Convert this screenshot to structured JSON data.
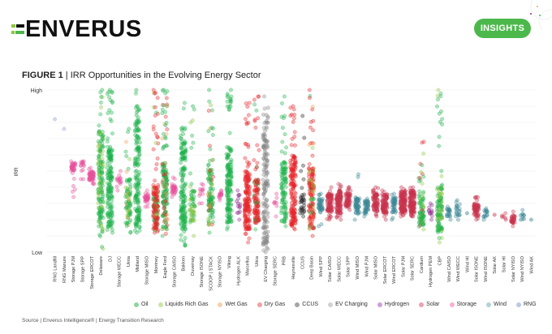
{
  "header": {
    "logo_text": "ENVERUS",
    "insights_label": "INSIGHTS"
  },
  "figure": {
    "label": "FIGURE 1",
    "separator": " | ",
    "title": "IRR Opportunities in the Evolving Energy Sector"
  },
  "source_text": "Source | Enverus Intelligence® | Energy Transition Research",
  "colors": {
    "brand_green": "#4cb84c",
    "Oil": "#1db34a",
    "Liquids Rich Gas": "#8cc63f",
    "Wet Gas": "#f5a05a",
    "Dry Gas": "#e8262a",
    "CCUS": "#222222",
    "EV Charging": "#888888",
    "Hydrogen": "#8e2a8e",
    "Solar": "#c8334d",
    "Storage": "#e8509a",
    "Wind": "#3b8796",
    "RNG": "#9aaed6"
  },
  "chart_data": {
    "type": "scatter",
    "subtype": "categorical strip plot",
    "title": "IRR Opportunities in the Evolving Energy Sector",
    "xlabel": "",
    "ylabel": "IRR",
    "y_tick_labels": [
      "High",
      "Low"
    ],
    "ylim": [
      0,
      1
    ],
    "grid": true,
    "legend_position": "bottom",
    "legend": [
      "Oil",
      "Liquids Rich Gas",
      "Wet Gas",
      "Dry Gas",
      "CCUS",
      "EV Charging",
      "Hydrogen",
      "Solar",
      "Storage",
      "Wind",
      "RNG"
    ],
    "categories": [
      {
        "name": "RNG Landfill",
        "group": "RNG",
        "min": 0.82,
        "max": 0.82,
        "q1": 0.82,
        "q3": 0.82,
        "n": 1
      },
      {
        "name": "RNG Manure",
        "group": "RNG",
        "min": 0.76,
        "max": 0.76,
        "q1": 0.76,
        "q3": 0.76,
        "n": 1
      },
      {
        "name": "Storage PJM",
        "group": "Storage",
        "min": 0.34,
        "max": 0.56,
        "q1": 0.5,
        "q3": 0.55,
        "n": 40
      },
      {
        "name": "Storage SPP",
        "group": "Storage",
        "min": 0.45,
        "max": 0.56,
        "q1": 0.53,
        "q3": 0.56,
        "n": 15
      },
      {
        "name": "Storage ERCOT",
        "group": "Storage",
        "min": 0.42,
        "max": 0.52,
        "q1": 0.44,
        "q3": 0.5,
        "n": 50
      },
      {
        "name": "Delaware",
        "group": "Oil",
        "mix": [
          "Liquids Rich Gas"
        ],
        "min": 0.02,
        "max": 1.0,
        "q1": 0.12,
        "q3": 0.75,
        "n": 400
      },
      {
        "name": "DJ",
        "group": "Oil",
        "min": 0.12,
        "max": 1.0,
        "q1": 0.15,
        "q3": 0.65,
        "n": 250
      },
      {
        "name": "Storage WECC",
        "group": "Storage",
        "min": 0.38,
        "max": 0.5,
        "q1": 0.4,
        "q3": 0.46,
        "n": 15
      },
      {
        "name": "Uinta",
        "group": "Oil",
        "mix": [
          "Wet Gas",
          "Liquids Rich Gas"
        ],
        "min": 0.12,
        "max": 0.76,
        "q1": 0.16,
        "q3": 0.45,
        "n": 80
      },
      {
        "name": "Midland",
        "group": "Oil",
        "min": 0.12,
        "max": 1.0,
        "q1": 0.14,
        "q3": 0.85,
        "n": 450
      },
      {
        "name": "Storage MISO",
        "group": "Storage",
        "min": 0.28,
        "max": 0.38,
        "q1": 0.31,
        "q3": 0.36,
        "n": 30
      },
      {
        "name": "Montney",
        "group": "Dry Gas",
        "mix": [
          "Liquids Rich Gas",
          "Oil"
        ],
        "min": 0.12,
        "max": 1.0,
        "q1": 0.14,
        "q3": 0.4,
        "n": 250
      },
      {
        "name": "Eagle Ford",
        "group": "Oil",
        "mix": [
          "Dry Gas",
          "Wet Gas"
        ],
        "min": 0.1,
        "max": 1.0,
        "q1": 0.14,
        "q3": 0.55,
        "n": 300
      },
      {
        "name": "Storage CAISO",
        "group": "Storage",
        "min": 0.34,
        "max": 0.46,
        "q1": 0.36,
        "q3": 0.42,
        "n": 30
      },
      {
        "name": "Bakken",
        "group": "Oil",
        "min": 0.04,
        "max": 0.92,
        "q1": 0.14,
        "q3": 0.7,
        "n": 300
      },
      {
        "name": "Duvernay",
        "group": "Oil",
        "mix": [
          "Liquids Rich Gas"
        ],
        "min": 0.1,
        "max": 0.9,
        "q1": 0.18,
        "q3": 0.38,
        "n": 60
      },
      {
        "name": "Storage ISONE",
        "group": "Storage",
        "min": 0.3,
        "max": 0.42,
        "q1": 0.34,
        "q3": 0.4,
        "n": 12
      },
      {
        "name": "SCOOP | STACK",
        "group": "Oil",
        "mix": [
          "Wet Gas",
          "Dry Gas",
          "Liquids Rich Gas"
        ],
        "min": 0.12,
        "max": 1.0,
        "q1": 0.16,
        "q3": 0.52,
        "n": 120
      },
      {
        "name": "Storage NYISO",
        "group": "Storage",
        "min": 0.32,
        "max": 0.38,
        "q1": 0.33,
        "q3": 0.37,
        "n": 15
      },
      {
        "name": "Viking",
        "group": "Oil",
        "min": 0.14,
        "max": 1.0,
        "q1": 0.18,
        "q3": 0.65,
        "n": 200
      },
      {
        "name": "Hydrogen ALK",
        "group": "Hydrogen",
        "min": 0.2,
        "max": 0.38,
        "q1": 0.24,
        "q3": 0.36,
        "n": 15
      },
      {
        "name": "Marcellus",
        "group": "Dry Gas",
        "min": 0.06,
        "max": 0.92,
        "q1": 0.14,
        "q3": 0.5,
        "n": 250
      },
      {
        "name": "Utica",
        "group": "Dry Gas",
        "mix": [
          "Oil"
        ],
        "min": 0.14,
        "max": 0.96,
        "q1": 0.18,
        "q3": 0.45,
        "n": 120
      },
      {
        "name": "EV Charging",
        "group": "EV Charging",
        "min": 0.0,
        "max": 0.96,
        "q1": 0.05,
        "q3": 0.8,
        "n": 300
      },
      {
        "name": "Storage SERC",
        "group": "Storage",
        "min": 0.22,
        "max": 0.36,
        "q1": 0.28,
        "q3": 0.34,
        "n": 8
      },
      {
        "name": "PRB",
        "group": "Oil",
        "min": 0.16,
        "max": 0.96,
        "q1": 0.18,
        "q3": 0.56,
        "n": 100
      },
      {
        "name": "Haynesville",
        "group": "Dry Gas",
        "min": 0.14,
        "max": 0.9,
        "q1": 0.16,
        "q3": 0.6,
        "n": 250
      },
      {
        "name": "CCUS",
        "group": "CCUS",
        "min": 0.22,
        "max": 0.84,
        "q1": 0.24,
        "q3": 0.36,
        "n": 30
      },
      {
        "name": "Deep Basin",
        "group": "Dry Gas",
        "mix": [
          "Wet Gas",
          "Liquids Rich Gas",
          "Oil"
        ],
        "min": 0.1,
        "max": 1.0,
        "q1": 0.14,
        "q3": 0.52,
        "n": 200
      },
      {
        "name": "Wind SPP",
        "group": "Wind",
        "min": 0.16,
        "max": 0.36,
        "q1": 0.26,
        "q3": 0.34,
        "n": 40
      },
      {
        "name": "Solar CAISO",
        "group": "Solar",
        "min": 0.2,
        "max": 0.4,
        "q1": 0.24,
        "q3": 0.36,
        "n": 80
      },
      {
        "name": "Solar WECC",
        "group": "Solar",
        "min": 0.2,
        "max": 0.42,
        "q1": 0.24,
        "q3": 0.38,
        "n": 100
      },
      {
        "name": "Solar SPP",
        "group": "Solar",
        "min": 0.26,
        "max": 0.4,
        "q1": 0.28,
        "q3": 0.36,
        "n": 60
      },
      {
        "name": "Wind MISO",
        "group": "Wind",
        "min": 0.2,
        "max": 0.48,
        "q1": 0.24,
        "q3": 0.34,
        "n": 50
      },
      {
        "name": "Wind PJM",
        "group": "Wind",
        "min": 0.22,
        "max": 0.33,
        "q1": 0.24,
        "q3": 0.32,
        "n": 40
      },
      {
        "name": "Solar MISO",
        "group": "Solar",
        "min": 0.22,
        "max": 0.4,
        "q1": 0.25,
        "q3": 0.37,
        "n": 80
      },
      {
        "name": "Solar ERCOT",
        "group": "Solar",
        "min": 0.2,
        "max": 0.38,
        "q1": 0.24,
        "q3": 0.36,
        "n": 80
      },
      {
        "name": "Wind ERCOT",
        "group": "Wind",
        "min": 0.2,
        "max": 0.36,
        "q1": 0.24,
        "q3": 0.34,
        "n": 40
      },
      {
        "name": "Solar PJM",
        "group": "Solar",
        "min": 0.22,
        "max": 0.4,
        "q1": 0.24,
        "q3": 0.38,
        "n": 120
      },
      {
        "name": "Solar SERC",
        "group": "Solar",
        "min": 0.22,
        "max": 0.4,
        "q1": 0.24,
        "q3": 0.38,
        "n": 120
      },
      {
        "name": "Cardium",
        "group": "Oil",
        "mix": [
          "Dry Gas",
          "Liquids Rich Gas"
        ],
        "min": 0.14,
        "max": 0.68,
        "q1": 0.16,
        "q3": 0.36,
        "n": 80
      },
      {
        "name": "Hydrogen PEM",
        "group": "Hydrogen",
        "min": 0.2,
        "max": 0.3,
        "q1": 0.22,
        "q3": 0.29,
        "n": 12
      },
      {
        "name": "CBP",
        "group": "Oil",
        "mix": [
          "Liquids Rich Gas"
        ],
        "min": 0.06,
        "max": 1.0,
        "q1": 0.12,
        "q3": 0.4,
        "n": 120
      },
      {
        "name": "Wind CAISO",
        "group": "Wind",
        "min": 0.2,
        "max": 0.28,
        "q1": 0.22,
        "q3": 0.27,
        "n": 20
      },
      {
        "name": "Wind WECC",
        "group": "Wind",
        "min": 0.2,
        "max": 0.32,
        "q1": 0.22,
        "q3": 0.29,
        "n": 20
      },
      {
        "name": "Wind HI",
        "group": "Wind",
        "min": 0.24,
        "max": 0.24,
        "q1": 0.24,
        "q3": 0.24,
        "n": 1
      },
      {
        "name": "Solar ISONE",
        "group": "Solar",
        "min": 0.2,
        "max": 0.34,
        "q1": 0.22,
        "q3": 0.3,
        "n": 60
      },
      {
        "name": "Wind ISONE",
        "group": "Wind",
        "min": 0.2,
        "max": 0.27,
        "q1": 0.21,
        "q3": 0.26,
        "n": 15
      },
      {
        "name": "Solar AK",
        "group": "Solar",
        "min": 0.23,
        "max": 0.23,
        "q1": 0.23,
        "q3": 0.23,
        "n": 1
      },
      {
        "name": "Solar HI",
        "group": "Solar",
        "min": 0.2,
        "max": 0.24,
        "q1": 0.21,
        "q3": 0.23,
        "n": 6
      },
      {
        "name": "Solar NYISO",
        "group": "Solar",
        "min": 0.16,
        "max": 0.25,
        "q1": 0.18,
        "q3": 0.23,
        "n": 30
      },
      {
        "name": "Wind NYISO",
        "group": "Wind",
        "min": 0.2,
        "max": 0.26,
        "q1": 0.2,
        "q3": 0.24,
        "n": 10
      },
      {
        "name": "Wind AK",
        "group": "Wind",
        "min": 0.2,
        "max": 0.2,
        "q1": 0.2,
        "q3": 0.2,
        "n": 1
      }
    ]
  },
  "legend_items": [
    {
      "label": "Oil",
      "color": "#8fd49f"
    },
    {
      "label": "Liquids Rich Gas",
      "color": "#c9e6a5"
    },
    {
      "label": "Wet Gas",
      "color": "#f9cfa8"
    },
    {
      "label": "Dry Gas",
      "color": "#f3a0a2"
    },
    {
      "label": "CCUS",
      "color": "#a5a5a5"
    },
    {
      "label": "EV Charging",
      "color": "#d2d2d2"
    },
    {
      "label": "Hydrogen",
      "color": "#cfa0d6"
    },
    {
      "label": "Solar",
      "color": "#eaa3b1"
    },
    {
      "label": "Storage",
      "color": "#f6b0d2"
    },
    {
      "label": "Wind",
      "color": "#b3d3d8"
    },
    {
      "label": "RNG",
      "color": "#bcc9e6"
    }
  ]
}
